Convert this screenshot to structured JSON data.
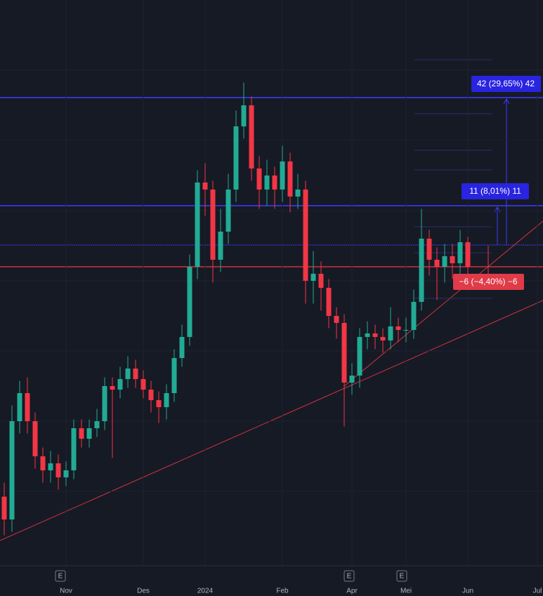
{
  "chart_data": {
    "type": "candlestick",
    "categories": [
      null,
      null,
      null,
      null,
      null,
      null,
      null,
      null,
      "Nov",
      null,
      null,
      null,
      null,
      null,
      null,
      null,
      null,
      null,
      "Des",
      null,
      null,
      null,
      null,
      null,
      null,
      null,
      "2024",
      null,
      null,
      null,
      null,
      null,
      null,
      null,
      null,
      null,
      "Feb",
      null,
      null,
      null,
      null,
      null,
      null,
      null,
      null,
      "Apr",
      null,
      null,
      null,
      null,
      null,
      null,
      "Mei",
      null,
      null,
      null,
      null,
      null,
      null,
      null,
      "Jun",
      null,
      null,
      null,
      null,
      null,
      null,
      null,
      null,
      "Jul"
    ],
    "open": [
      70,
      63.5,
      91.5,
      99.5,
      91.5,
      81.5,
      77.5,
      79.5,
      75.5,
      77.5,
      89.5,
      86.5,
      89.5,
      91.5,
      101.5,
      100.5,
      103.5,
      106.5,
      103.5,
      100.5,
      97.5,
      95.5,
      99.5,
      109.5,
      115.5,
      135.5,
      159.5,
      157.5,
      137.5,
      145.5,
      157.5,
      175.5,
      181.5,
      163.5,
      157.5,
      161.5,
      157.5,
      165.5,
      155.5,
      157.5,
      131.5,
      133.5,
      129.5,
      121.5,
      119.5,
      102.5,
      104.5,
      115.5,
      116.5,
      115.5,
      114.5,
      118.5,
      117.5,
      117.5,
      125.5,
      143.5,
      137.5,
      135.5,
      138.5,
      136.5,
      142.5,
      null,
      null,
      null,
      null,
      null,
      null,
      null,
      null,
      null
    ],
    "high": [
      74,
      96,
      103,
      104,
      94,
      84,
      83,
      82,
      80,
      92,
      92,
      92,
      95,
      104,
      104,
      107,
      110,
      109,
      106,
      103,
      100,
      102,
      112,
      119,
      139,
      163,
      165,
      160,
      152,
      162,
      180,
      188,
      184,
      167,
      166,
      164,
      170,
      168,
      162,
      160,
      140,
      137,
      132,
      124,
      122,
      108,
      118,
      120,
      119,
      118,
      124,
      121,
      121,
      129,
      152,
      146,
      141,
      142,
      142,
      146,
      144,
      null,
      null,
      null,
      null,
      null,
      null,
      null,
      null,
      null
    ],
    "low": [
      59,
      60,
      88,
      88,
      78,
      74,
      74,
      72,
      73,
      75,
      84,
      84,
      87,
      89,
      81,
      98,
      101,
      101,
      98,
      94,
      91,
      92,
      97,
      107,
      113,
      132,
      150,
      131,
      134,
      142,
      154,
      172,
      160,
      152,
      153,
      152,
      154,
      151,
      152,
      125,
      125,
      123,
      118,
      115,
      90,
      99,
      101,
      112,
      112,
      111,
      112,
      114,
      114,
      115,
      123,
      133,
      126,
      131,
      132,
      132,
      133,
      null,
      null,
      null,
      null,
      null,
      null,
      null,
      null,
      null
    ],
    "close": [
      63.5,
      91.5,
      99.5,
      91.5,
      81.5,
      77.5,
      79.5,
      75.5,
      77.5,
      89.5,
      86.5,
      89.5,
      91.5,
      101.5,
      100.5,
      103.5,
      106.5,
      103.5,
      100.5,
      97.5,
      95.5,
      99.5,
      109.5,
      115.5,
      135.5,
      159.5,
      157.5,
      137.5,
      145.5,
      157.5,
      175.5,
      181.5,
      163.5,
      157.5,
      161.5,
      157.5,
      165.5,
      155.5,
      157.5,
      131.5,
      133.5,
      129.5,
      121.5,
      119.5,
      102.5,
      104.5,
      115.5,
      116.5,
      115.5,
      114.5,
      118.5,
      117.5,
      117.5,
      125.5,
      143.5,
      137.5,
      135.5,
      138.5,
      136.5,
      142.5,
      135.5,
      null,
      null,
      null,
      null,
      null,
      null,
      null,
      null,
      null
    ],
    "up_color": "#22ab94",
    "down_color": "#f23645",
    "ylim": [
      50.3,
      211.5
    ],
    "grid": true,
    "measurements": [
      "42 (29,65%) 42",
      "11 (8,01%) 11",
      "−6 (−4,40%) −6"
    ],
    "events": [
      "E",
      "E",
      "E"
    ]
  }
}
